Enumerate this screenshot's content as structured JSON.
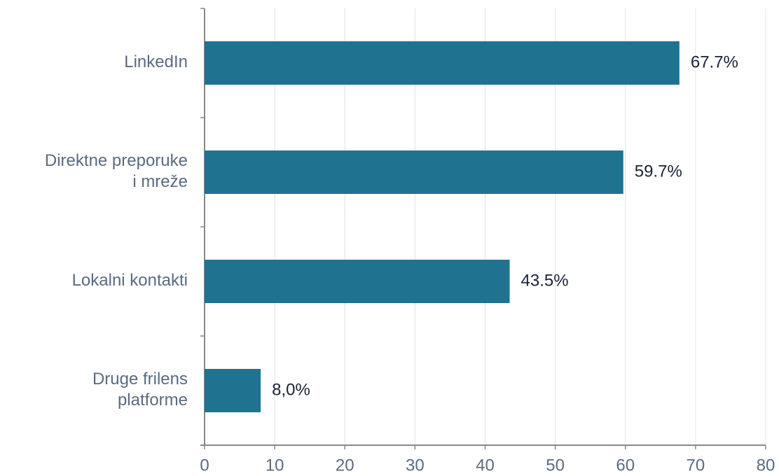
{
  "chart_data": {
    "type": "bar",
    "orientation": "horizontal",
    "categories": [
      "LinkedIn",
      "Direktne preporuke i mreže",
      "Lokalni kontakti",
      "Druge frilens platforme"
    ],
    "values": [
      67.7,
      59.7,
      43.5,
      8.0
    ],
    "value_labels": [
      "67.7%",
      "59.7%",
      "43.5%",
      "8,0%"
    ],
    "color": "#1f7391",
    "xlim": [
      0,
      80
    ],
    "xticks": [
      0,
      10,
      20,
      30,
      40,
      50,
      60,
      70,
      80
    ],
    "grid": true
  }
}
